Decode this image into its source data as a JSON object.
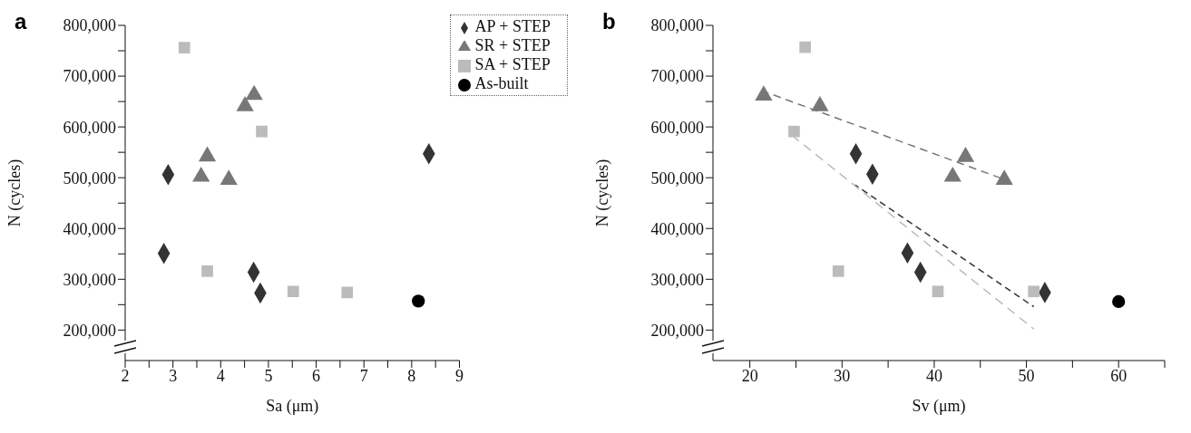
{
  "chart_data": [
    {
      "type": "scatter",
      "title": "a",
      "xlabel": "Sa (μm)",
      "ylabel": "N (cycles)",
      "legend": "top right",
      "xlim": [
        2,
        9
      ],
      "xticks": [
        2,
        {
          "value": 2.5,
          "label": null
        },
        3,
        {
          "value": 3.5,
          "label": null
        },
        4,
        {
          "value": 4.5,
          "label": null
        },
        5,
        {
          "value": 5.5,
          "label": null
        },
        6,
        {
          "value": 6.5,
          "label": null
        },
        7,
        {
          "value": 7.5,
          "label": null
        },
        8,
        {
          "value": 8.5,
          "label": null
        },
        9
      ],
      "ylim": [
        140000,
        800000
      ],
      "yticks": [
        {
          "value": 200000,
          "label": "200,000"
        },
        {
          "value": 250000,
          "label": null
        },
        {
          "value": 300000,
          "label": "300,000"
        },
        {
          "value": 350000,
          "label": null
        },
        {
          "value": 400000,
          "label": "400,000"
        },
        {
          "value": 450000,
          "label": null
        },
        {
          "value": 500000,
          "label": "500,000"
        },
        {
          "value": 550000,
          "label": null
        },
        {
          "value": 600000,
          "label": "600,000"
        },
        {
          "value": 650000,
          "label": null
        },
        {
          "value": 700000,
          "label": "700,000"
        },
        {
          "value": 750000,
          "label": null
        },
        {
          "value": 800000,
          "label": "800,000"
        }
      ],
      "series": [
        {
          "name": "AP + STEP",
          "color": "#333333",
          "marker": "diamond",
          "x": [
            2.9,
            2.81,
            4.69,
            4.83,
            8.36
          ],
          "values": [
            506000,
            351000,
            314000,
            273000,
            547000
          ]
        },
        {
          "name": "SR + STEP",
          "color": "#777777",
          "marker": "triangle",
          "x": [
            3.59,
            3.72,
            4.17,
            4.51,
            4.7
          ],
          "values": [
            502000,
            542000,
            496000,
            641000,
            663000
          ]
        },
        {
          "name": "SA + STEP",
          "color": "#bbbbbb",
          "marker": "square",
          "x": [
            3.24,
            4.86,
            3.72,
            5.52,
            6.65
          ],
          "values": [
            756000,
            591000,
            316000,
            276000,
            274000
          ]
        },
        {
          "name": "As-built",
          "color": "#000000",
          "marker": "circle",
          "x": [
            8.14
          ],
          "values": [
            257000
          ]
        }
      ]
    },
    {
      "type": "scatter",
      "title": "b",
      "xlabel": "Sv (μm)",
      "ylabel": "N (cycles)",
      "legend": false,
      "xlim": [
        16,
        65
      ],
      "xticks": [
        20,
        {
          "value": 25,
          "label": null
        },
        30,
        {
          "value": 35,
          "label": null
        },
        40,
        {
          "value": 45,
          "label": null
        },
        50,
        {
          "value": 55,
          "label": null
        },
        60,
        {
          "value": 65,
          "label": null
        }
      ],
      "ylim": [
        140000,
        800000
      ],
      "yticks": [
        {
          "value": 200000,
          "label": "200,000"
        },
        {
          "value": 250000,
          "label": null
        },
        {
          "value": 300000,
          "label": "300,000"
        },
        {
          "value": 350000,
          "label": null
        },
        {
          "value": 400000,
          "label": "400,000"
        },
        {
          "value": 450000,
          "label": null
        },
        {
          "value": 500000,
          "label": "500,000"
        },
        {
          "value": 550000,
          "label": null
        },
        {
          "value": 600000,
          "label": "600,000"
        },
        {
          "value": 650000,
          "label": null
        },
        {
          "value": 700000,
          "label": "700,000"
        },
        {
          "value": 750000,
          "label": null
        },
        {
          "value": 800000,
          "label": "800,000"
        }
      ],
      "series": [
        {
          "color": "#333333",
          "marker": "diamond",
          "x": [
            31.5,
            33.3,
            37.1,
            38.5,
            52.0
          ],
          "values": [
            547000,
            507000,
            352000,
            314000,
            274000
          ]
        },
        {
          "color": "#777777",
          "marker": "triangle",
          "x": [
            21.5,
            27.6,
            42.0,
            43.4,
            47.6
          ],
          "values": [
            662000,
            641000,
            502000,
            541000,
            496000
          ]
        },
        {
          "color": "#bbbbbb",
          "marker": "square",
          "x": [
            26.0,
            24.8,
            29.6,
            40.4,
            50.8
          ],
          "values": [
            757000,
            591000,
            316000,
            276000,
            276000
          ]
        },
        {
          "color": "#000000",
          "marker": "circle",
          "x": [
            60
          ],
          "values": [
            256000
          ]
        },
        {
          "type": "line",
          "color": "#777777",
          "line_style": "dashed",
          "marker": "none",
          "x": [
            21.5,
            48
          ],
          "values": [
            670000,
            494000
          ]
        },
        {
          "type": "line",
          "color": "#333333",
          "line_style": "dashed",
          "marker": "none",
          "x": [
            31.4,
            50.8
          ],
          "values": [
            486000,
            246000
          ]
        },
        {
          "type": "line",
          "color": "#bbbbbb",
          "line_style": "dashed",
          "marker": "none",
          "x": [
            24.8,
            50.8
          ],
          "values": [
            580000,
            202000
          ]
        }
      ]
    }
  ]
}
